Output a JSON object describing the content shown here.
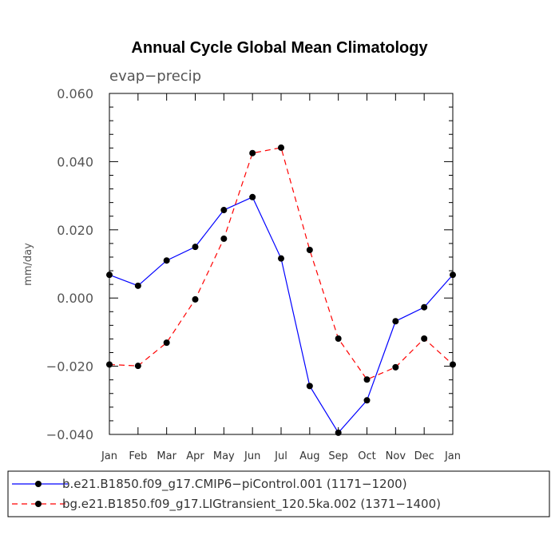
{
  "chart_data": {
    "type": "line",
    "title": "Annual Cycle Global Mean Climatology",
    "subtitle": "evap−precip",
    "ylabel": "mm/day",
    "xlabel": "",
    "categories": [
      "Jan",
      "Feb",
      "Mar",
      "Apr",
      "May",
      "Jun",
      "Jul",
      "Aug",
      "Sep",
      "Oct",
      "Nov",
      "Dec",
      "Jan"
    ],
    "ylim": [
      -0.04,
      0.06
    ],
    "yticks": [
      -0.04,
      -0.02,
      0.0,
      0.02,
      0.04,
      0.06
    ],
    "ytick_labels": [
      "−0.040",
      "−0.020",
      "0.000",
      "0.020",
      "0.040",
      "0.060"
    ],
    "legend_position": "bottom",
    "grid": false,
    "series": [
      {
        "name": "b.e21.B1850.f09_g17.CMIP6−piControl.001 (1171−1200)",
        "color": "#0000ff",
        "dash": "solid",
        "values": [
          0.0068,
          0.0036,
          0.011,
          0.015,
          0.0258,
          0.0296,
          0.0116,
          -0.0258,
          -0.0395,
          -0.03,
          -0.0068,
          -0.0027,
          0.0068
        ]
      },
      {
        "name": "bg.e21.B1850.f09_g17.LIGtransient_120.5ka.002 (1371−1400)",
        "color": "#ff0000",
        "dash": "dashed",
        "values": [
          -0.0195,
          -0.0199,
          -0.0131,
          -0.0004,
          0.0174,
          0.0425,
          0.0441,
          0.0141,
          -0.0119,
          -0.0239,
          -0.0203,
          -0.0119,
          -0.0195
        ]
      }
    ]
  }
}
